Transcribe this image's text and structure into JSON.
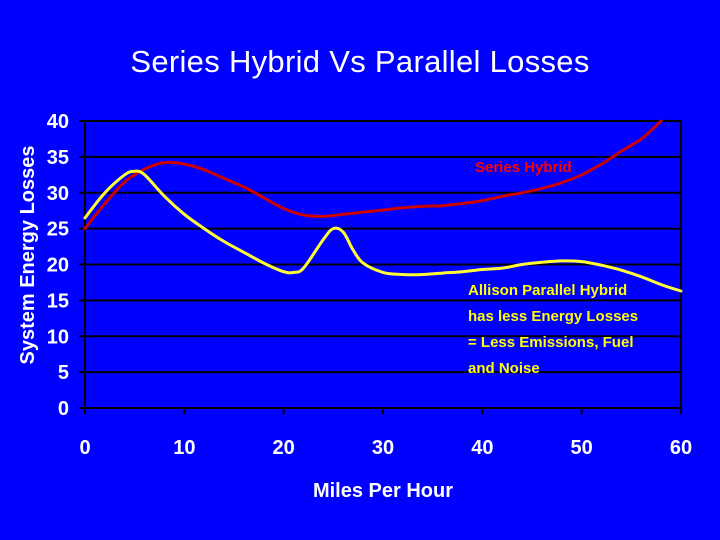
{
  "slide": {
    "title": "Series Hybrid Vs Parallel Losses",
    "background_color": "#0000ff"
  },
  "chart_data": {
    "type": "line",
    "title": "Series Hybrid Vs Parallel Losses",
    "xlabel": "Miles Per Hour",
    "ylabel": "System Energy Losses",
    "xlim": [
      0,
      60
    ],
    "ylim": [
      0,
      40
    ],
    "xticks": [
      0,
      10,
      20,
      30,
      40,
      50,
      60
    ],
    "yticks": [
      0,
      5,
      10,
      15,
      20,
      25,
      30,
      35,
      40
    ],
    "grid": "horizontal",
    "series": [
      {
        "name": "Series Hybrid",
        "color": "#cc0000",
        "x": [
          0,
          2,
          4,
          6,
          8,
          10,
          12,
          14,
          16,
          18,
          20,
          22,
          24,
          26,
          28,
          30,
          32,
          34,
          36,
          38,
          40,
          42,
          44,
          46,
          48,
          50,
          52,
          54,
          56,
          58
        ],
        "y": [
          25,
          28.5,
          31.5,
          33.3,
          34.2,
          34,
          33.2,
          32,
          30.8,
          29.3,
          27.8,
          26.9,
          26.7,
          27,
          27.3,
          27.6,
          27.9,
          28.1,
          28.2,
          28.5,
          28.9,
          29.5,
          30,
          30.6,
          31.4,
          32.5,
          34,
          35.8,
          37.5,
          40
        ]
      },
      {
        "name": "Allison Parallel Hybrid",
        "color": "#ffff33",
        "x": [
          0,
          2,
          4,
          5,
          6,
          8,
          10,
          12,
          14,
          16,
          18,
          20,
          21,
          22,
          24,
          25,
          26,
          27,
          28,
          30,
          32,
          34,
          36,
          38,
          40,
          42,
          44,
          46,
          48,
          50,
          52,
          54,
          56,
          58,
          60
        ],
        "y": [
          26.5,
          30,
          32.5,
          33,
          32.5,
          29.5,
          27,
          25,
          23.2,
          21.7,
          20.2,
          19,
          18.9,
          19.5,
          23.5,
          25,
          24.5,
          22,
          20.2,
          18.9,
          18.6,
          18.6,
          18.8,
          19,
          19.3,
          19.5,
          20,
          20.3,
          20.5,
          20.4,
          19.9,
          19.2,
          18.3,
          17.2,
          16.3
        ]
      }
    ],
    "annotations": [
      {
        "text": "Series Hybrid",
        "color": "#ff0000"
      },
      {
        "lines": [
          "Allison Parallel Hybrid",
          "has less Energy  Losses",
          "= Less Emissions, Fuel",
          "and Noise"
        ],
        "color": "#ffff00"
      }
    ],
    "colors": {
      "axis": "#000000",
      "plot_background": "#0000ff",
      "tick_text": "#ffffff"
    }
  }
}
